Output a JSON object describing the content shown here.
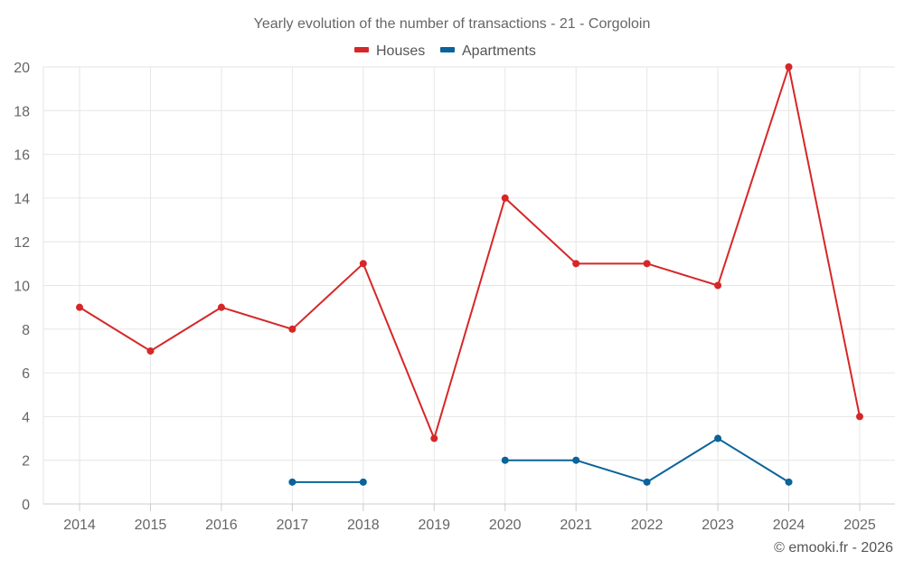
{
  "colors": {
    "houses": "#d62728",
    "apartments": "#0a6399",
    "grid": "#e6e6e6",
    "axis": "#cccccc",
    "text": "#666666"
  },
  "chart_data": {
    "type": "line",
    "title": "Yearly evolution of the number of transactions - 21 - Corgoloin",
    "categories": [
      "2014",
      "2015",
      "2016",
      "2017",
      "2018",
      "2019",
      "2020",
      "2021",
      "2022",
      "2023",
      "2024",
      "2025"
    ],
    "series": [
      {
        "name": "Houses",
        "color_key": "houses",
        "values": [
          9,
          7,
          9,
          8,
          11,
          3,
          14,
          11,
          11,
          10,
          20,
          4
        ]
      },
      {
        "name": "Apartments",
        "color_key": "apartments",
        "values": [
          null,
          null,
          null,
          1,
          1,
          null,
          2,
          2,
          1,
          3,
          1,
          null
        ]
      }
    ],
    "ylim": [
      0,
      20
    ],
    "yticks": [
      "0",
      "2",
      "4",
      "6",
      "8",
      "10",
      "12",
      "14",
      "16",
      "18",
      "20"
    ],
    "xlabel": "",
    "ylabel": "",
    "grid": true,
    "legend_position": "top-center"
  },
  "credit": "© emooki.fr - 2026"
}
